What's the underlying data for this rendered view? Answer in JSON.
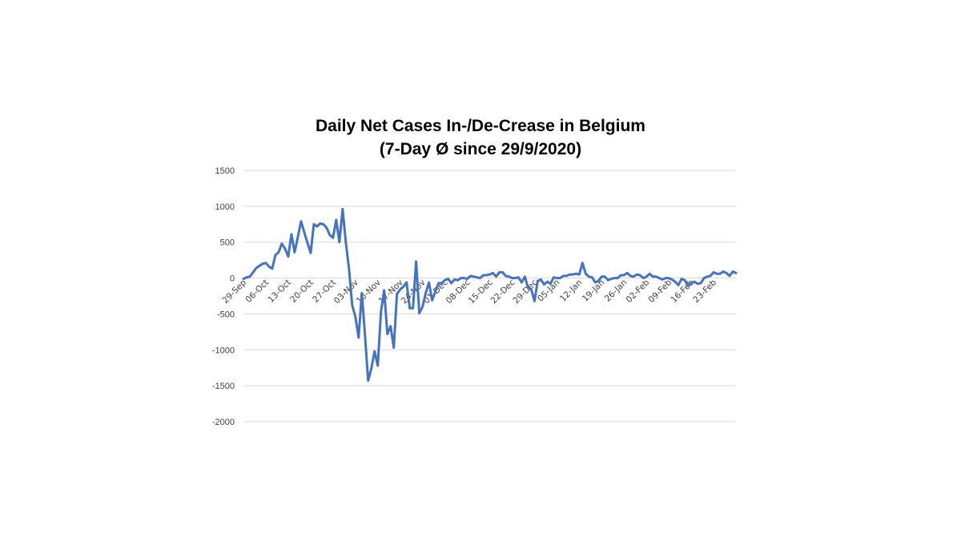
{
  "chart_data": {
    "type": "line",
    "title": [
      "Daily Net Cases In-/De-Crease in Belgium",
      "(7-Day Ø since 29/9/2020)"
    ],
    "xlabel": "",
    "ylabel": "",
    "ylim": [
      -2000,
      1500
    ],
    "yticks": [
      1500,
      1000,
      500,
      0,
      -500,
      -1000,
      -1500,
      -2000
    ],
    "grid": true,
    "legend": "none",
    "line_color": "#4472c4",
    "x_start": "29-Sep",
    "x_labels": [
      {
        "day": 0,
        "label": "29-Sep"
      },
      {
        "day": 7,
        "label": "06-Oct"
      },
      {
        "day": 14,
        "label": "13-Oct"
      },
      {
        "day": 21,
        "label": "20-Oct"
      },
      {
        "day": 28,
        "label": "27-Oct"
      },
      {
        "day": 35,
        "label": "03-Nov"
      },
      {
        "day": 42,
        "label": "10-Nov"
      },
      {
        "day": 49,
        "label": "17-Nov"
      },
      {
        "day": 56,
        "label": "24-Nov"
      },
      {
        "day": 63,
        "label": "01-Dec"
      },
      {
        "day": 70,
        "label": "08-Dec"
      },
      {
        "day": 77,
        "label": "15-Dec"
      },
      {
        "day": 84,
        "label": "22-Dec"
      },
      {
        "day": 91,
        "label": "29-Dec"
      },
      {
        "day": 98,
        "label": "05-Jan"
      },
      {
        "day": 105,
        "label": "12-Jan"
      },
      {
        "day": 112,
        "label": "19-Jan"
      },
      {
        "day": 119,
        "label": "26-Jan"
      },
      {
        "day": 126,
        "label": "02-Feb"
      },
      {
        "day": 133,
        "label": "09-Feb"
      },
      {
        "day": 140,
        "label": "16-Feb"
      },
      {
        "day": 147,
        "label": "23-Feb"
      }
    ],
    "values": [
      -10,
      10,
      20,
      80,
      140,
      170,
      200,
      210,
      160,
      130,
      320,
      360,
      480,
      410,
      300,
      610,
      360,
      570,
      790,
      640,
      490,
      350,
      750,
      720,
      760,
      750,
      700,
      600,
      560,
      810,
      500,
      960,
      500,
      130,
      -380,
      -540,
      -830,
      -210,
      -800,
      -1430,
      -1260,
      -1020,
      -1220,
      -470,
      -170,
      -780,
      -670,
      -970,
      -220,
      -160,
      -120,
      -60,
      -420,
      -420,
      230,
      -490,
      -400,
      -210,
      -60,
      -310,
      -190,
      -70,
      -70,
      -30,
      -10,
      -70,
      -20,
      -30,
      0,
      0,
      -10,
      30,
      20,
      10,
      0,
      40,
      40,
      50,
      70,
      20,
      80,
      80,
      30,
      20,
      0,
      0,
      10,
      -60,
      20,
      -140,
      -160,
      -320,
      -40,
      -20,
      -90,
      -50,
      -80,
      10,
      0,
      0,
      30,
      30,
      50,
      50,
      60,
      50,
      210,
      60,
      20,
      10,
      -60,
      -40,
      20,
      20,
      -30,
      -10,
      0,
      0,
      40,
      40,
      70,
      30,
      20,
      50,
      40,
      0,
      20,
      60,
      20,
      20,
      0,
      -20,
      0,
      0,
      -20,
      -50,
      -100,
      -10,
      -30,
      -110,
      -70,
      -50,
      -80,
      -70,
      0,
      20,
      30,
      80,
      60,
      60,
      90,
      70,
      30,
      90,
      70
    ]
  }
}
